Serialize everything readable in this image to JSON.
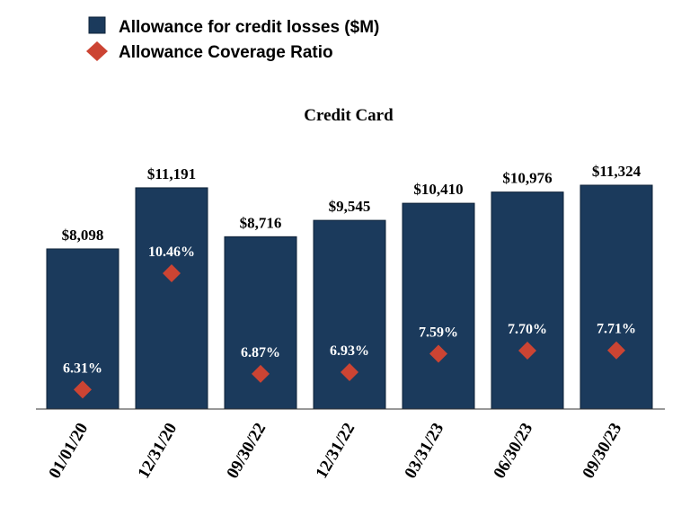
{
  "chart_data": {
    "type": "bar",
    "title": "Credit Card",
    "categories": [
      "01/01/20",
      "12/31/20",
      "09/30/22",
      "12/31/22",
      "03/31/23",
      "06/30/23",
      "09/30/23"
    ],
    "series": [
      {
        "name": "Allowance for credit losses ($M)",
        "kind": "bar",
        "color": "#1b3a5c",
        "values": [
          8098,
          11191,
          8716,
          9545,
          10410,
          10976,
          11324
        ],
        "labels": [
          "$8,098",
          "$11,191",
          "$8,716",
          "$9,545",
          "$10,410",
          "$10,976",
          "$11,324"
        ]
      },
      {
        "name": "Allowance Coverage Ratio",
        "kind": "marker",
        "marker": "diamond",
        "color": "#cc4433",
        "values": [
          6.31,
          10.46,
          6.87,
          6.93,
          7.59,
          7.7,
          7.71
        ],
        "labels": [
          "6.31%",
          "10.46%",
          "6.87%",
          "6.93%",
          "7.59%",
          "7.70%",
          "7.71%"
        ]
      }
    ],
    "legend_position": "top-left",
    "grid": false,
    "ylim": [
      0,
      11324
    ],
    "ratio_ylim": [
      0,
      10.46
    ]
  }
}
